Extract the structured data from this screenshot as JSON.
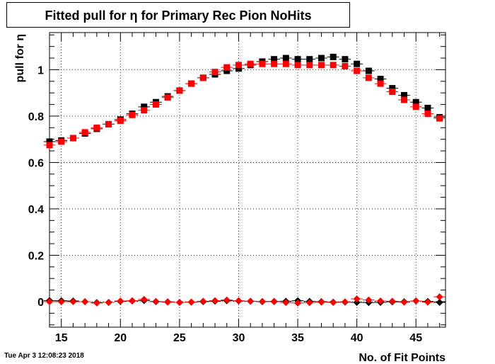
{
  "title": "Fitted pull for  η for Primary Rec Pion NoHits",
  "timestamp": "Tue Apr  3 12:08:23 2018",
  "chart_data": {
    "type": "scatter",
    "title": "Fitted pull for  η for Primary Rec Pion NoHits",
    "xlabel": "No. of Fit Points",
    "ylabel": "pull for  η",
    "xlim": [
      14,
      47.5
    ],
    "ylim": [
      -0.11,
      1.16
    ],
    "grid": true,
    "x_ticks": [
      15,
      20,
      25,
      30,
      35,
      40,
      45
    ],
    "y_ticks": [
      0,
      0.2,
      0.4,
      0.6,
      0.8,
      1
    ],
    "x": [
      14,
      15,
      16,
      17,
      18,
      19,
      20,
      21,
      22,
      23,
      24,
      25,
      26,
      27,
      28,
      29,
      30,
      31,
      32,
      33,
      34,
      35,
      36,
      37,
      38,
      39,
      40,
      41,
      42,
      43,
      44,
      45,
      46,
      47
    ],
    "series": [
      {
        "marker": "square",
        "color": "#000000",
        "values": [
          0.69,
          0.695,
          0.705,
          0.725,
          0.745,
          0.765,
          0.785,
          0.81,
          0.84,
          0.86,
          0.885,
          0.91,
          0.94,
          0.965,
          0.98,
          0.995,
          1.005,
          1.02,
          1.035,
          1.045,
          1.05,
          1.045,
          1.045,
          1.05,
          1.055,
          1.045,
          1.025,
          0.995,
          0.96,
          0.92,
          0.89,
          0.86,
          0.835,
          0.795
        ]
      },
      {
        "marker": "square",
        "color": "#ff0000",
        "values": [
          0.675,
          0.69,
          0.705,
          0.73,
          0.75,
          0.765,
          0.78,
          0.805,
          0.825,
          0.85,
          0.88,
          0.91,
          0.94,
          0.965,
          0.99,
          1.01,
          1.02,
          1.025,
          1.025,
          1.025,
          1.025,
          1.02,
          1.02,
          1.02,
          1.02,
          1.015,
          0.995,
          0.965,
          0.94,
          0.905,
          0.87,
          0.84,
          0.81,
          0.79
        ]
      },
      {
        "marker": "diamond",
        "color": "#000000",
        "values": [
          0.005,
          0.004,
          0.003,
          0.0,
          -0.004,
          -0.003,
          0.001,
          0.003,
          0.005,
          0.0,
          -0.001,
          -0.003,
          -0.002,
          0.0,
          0.002,
          0.004,
          0.003,
          0.002,
          0.0,
          0.001,
          0.002,
          0.004,
          0.001,
          0.0,
          -0.002,
          -0.002,
          -0.003,
          -0.004,
          -0.003,
          -0.001,
          0.0,
          0.003,
          0.001,
          -0.003
        ]
      },
      {
        "marker": "diamond",
        "color": "#ff0000",
        "values": [
          0.0,
          0.0,
          0.0,
          0.0,
          -0.006,
          -0.003,
          0.003,
          0.004,
          0.01,
          0.001,
          -0.002,
          -0.003,
          -0.002,
          0.002,
          0.004,
          0.007,
          0.004,
          0.002,
          0.001,
          0.0,
          -0.004,
          -0.006,
          -0.004,
          -0.002,
          -0.003,
          -0.001,
          0.012,
          0.007,
          0.003,
          0.002,
          -0.002,
          0.003,
          -0.002,
          0.021
        ]
      }
    ]
  }
}
